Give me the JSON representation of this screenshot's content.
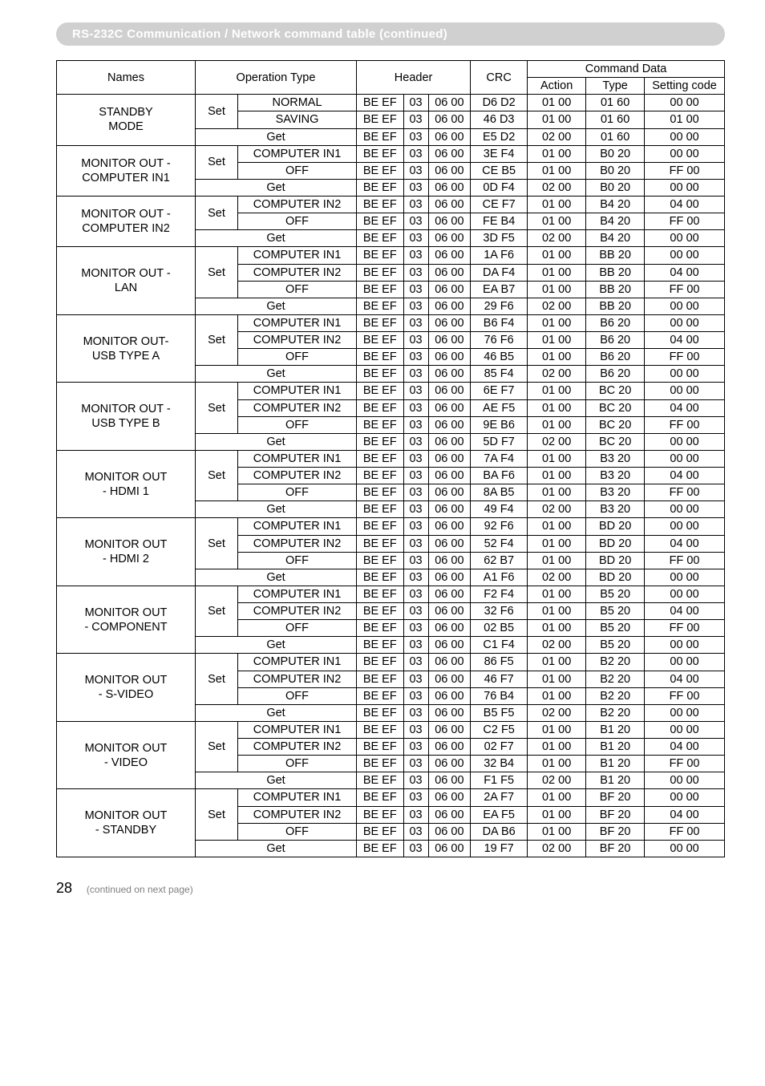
{
  "section_title": "RS-232C Communication / Network command table (continued)",
  "header": {
    "names": "Names",
    "operation_type": "Operation Type",
    "header": "Header",
    "crc": "CRC",
    "command_data": "Command Data",
    "action": "Action",
    "type": "Type",
    "setting_code": "Setting code"
  },
  "groups": [
    {
      "name": "STANDBY\nMODE",
      "set_rows": [
        {
          "op": "NORMAL",
          "h1": "BE  EF",
          "h2": "03",
          "h3": "06  00",
          "crc": "D6  D2",
          "action": "01  00",
          "type": "01  60",
          "sc": "00  00"
        },
        {
          "op": "SAVING",
          "h1": "BE  EF",
          "h2": "03",
          "h3": "06  00",
          "crc": "46  D3",
          "action": "01  00",
          "type": "01  60",
          "sc": "01  00"
        }
      ],
      "get_row": {
        "op": "Get",
        "h1": "BE  EF",
        "h2": "03",
        "h3": "06  00",
        "crc": "E5  D2",
        "action": "02  00",
        "type": "01  60",
        "sc": "00  00"
      }
    },
    {
      "name": "MONITOR OUT -\nCOMPUTER IN1",
      "set_rows": [
        {
          "op": "COMPUTER IN1",
          "h1": "BE  EF",
          "h2": "03",
          "h3": "06  00",
          "crc": "3E  F4",
          "action": "01  00",
          "type": "B0  20",
          "sc": "00  00"
        },
        {
          "op": "OFF",
          "h1": "BE  EF",
          "h2": "03",
          "h3": "06  00",
          "crc": "CE  B5",
          "action": "01  00",
          "type": "B0  20",
          "sc": "FF  00"
        }
      ],
      "get_row": {
        "op": "Get",
        "h1": "BE  EF",
        "h2": "03",
        "h3": "06  00",
        "crc": "0D  F4",
        "action": "02  00",
        "type": "B0  20",
        "sc": "00  00"
      }
    },
    {
      "name": "MONITOR OUT -\nCOMPUTER IN2",
      "set_rows": [
        {
          "op": "COMPUTER IN2",
          "h1": "BE  EF",
          "h2": "03",
          "h3": "06  00",
          "crc": "CE  F7",
          "action": "01  00",
          "type": "B4  20",
          "sc": "04  00"
        },
        {
          "op": "OFF",
          "h1": "BE  EF",
          "h2": "03",
          "h3": "06  00",
          "crc": "FE  B4",
          "action": "01  00",
          "type": "B4  20",
          "sc": "FF  00"
        }
      ],
      "get_row": {
        "op": "Get",
        "h1": "BE  EF",
        "h2": "03",
        "h3": "06  00",
        "crc": "3D  F5",
        "action": "02  00",
        "type": "B4  20",
        "sc": "00  00"
      }
    },
    {
      "name": "MONITOR OUT -\nLAN",
      "set_rows": [
        {
          "op": "COMPUTER IN1",
          "h1": "BE  EF",
          "h2": "03",
          "h3": "06  00",
          "crc": "1A  F6",
          "action": "01  00",
          "type": "BB  20",
          "sc": "00  00"
        },
        {
          "op": "COMPUTER IN2",
          "h1": "BE  EF",
          "h2": "03",
          "h3": "06  00",
          "crc": "DA  F4",
          "action": "01  00",
          "type": "BB  20",
          "sc": "04  00"
        },
        {
          "op": "OFF",
          "h1": "BE  EF",
          "h2": "03",
          "h3": "06  00",
          "crc": "EA  B7",
          "action": "01  00",
          "type": "BB  20",
          "sc": "FF  00"
        }
      ],
      "get_row": {
        "op": "Get",
        "h1": "BE  EF",
        "h2": "03",
        "h3": "06  00",
        "crc": "29  F6",
        "action": "02  00",
        "type": "BB  20",
        "sc": "00  00"
      }
    },
    {
      "name": "MONITOR OUT-\nUSB TYPE A",
      "set_rows": [
        {
          "op": "COMPUTER IN1",
          "h1": "BE  EF",
          "h2": "03",
          "h3": "06  00",
          "crc": "B6  F4",
          "action": "01  00",
          "type": "B6  20",
          "sc": "00  00"
        },
        {
          "op": "COMPUTER IN2",
          "h1": "BE  EF",
          "h2": "03",
          "h3": "06  00",
          "crc": "76  F6",
          "action": "01  00",
          "type": "B6  20",
          "sc": "04  00"
        },
        {
          "op": "OFF",
          "h1": "BE  EF",
          "h2": "03",
          "h3": "06  00",
          "crc": "46  B5",
          "action": "01  00",
          "type": "B6  20",
          "sc": "FF  00"
        }
      ],
      "get_row": {
        "op": "Get",
        "h1": "BE  EF",
        "h2": "03",
        "h3": "06  00",
        "crc": "85  F4",
        "action": "02  00",
        "type": "B6  20",
        "sc": "00  00"
      }
    },
    {
      "name": "MONITOR OUT -\nUSB TYPE B",
      "set_rows": [
        {
          "op": "COMPUTER IN1",
          "h1": "BE  EF",
          "h2": "03",
          "h3": "06  00",
          "crc": "6E  F7",
          "action": "01  00",
          "type": "BC  20",
          "sc": "00  00"
        },
        {
          "op": "COMPUTER IN2",
          "h1": "BE  EF",
          "h2": "03",
          "h3": "06  00",
          "crc": "AE  F5",
          "action": "01  00",
          "type": "BC  20",
          "sc": "04  00"
        },
        {
          "op": "OFF",
          "h1": "BE  EF",
          "h2": "03",
          "h3": "06  00",
          "crc": "9E  B6",
          "action": "01  00",
          "type": "BC  20",
          "sc": "FF  00"
        }
      ],
      "get_row": {
        "op": "Get",
        "h1": "BE  EF",
        "h2": "03",
        "h3": "06  00",
        "crc": "5D  F7",
        "action": "02  00",
        "type": "BC  20",
        "sc": "00  00"
      }
    },
    {
      "name": "MONITOR OUT\n- HDMI 1",
      "set_rows": [
        {
          "op": "COMPUTER IN1",
          "h1": "BE  EF",
          "h2": "03",
          "h3": "06  00",
          "crc": "7A  F4",
          "action": "01  00",
          "type": "B3  20",
          "sc": "00  00"
        },
        {
          "op": "COMPUTER IN2",
          "h1": "BE  EF",
          "h2": "03",
          "h3": "06  00",
          "crc": "BA  F6",
          "action": "01  00",
          "type": "B3  20",
          "sc": "04  00"
        },
        {
          "op": "OFF",
          "h1": "BE  EF",
          "h2": "03",
          "h3": "06  00",
          "crc": "8A  B5",
          "action": "01  00",
          "type": "B3  20",
          "sc": "FF  00"
        }
      ],
      "get_row": {
        "op": "Get",
        "h1": "BE  EF",
        "h2": "03",
        "h3": "06  00",
        "crc": "49  F4",
        "action": "02  00",
        "type": "B3  20",
        "sc": "00  00"
      }
    },
    {
      "name": "MONITOR OUT\n- HDMI 2",
      "set_rows": [
        {
          "op": "COMPUTER IN1",
          "h1": "BE  EF",
          "h2": "03",
          "h3": "06  00",
          "crc": "92  F6",
          "action": "01  00",
          "type": "BD  20",
          "sc": "00  00"
        },
        {
          "op": "COMPUTER IN2",
          "h1": "BE  EF",
          "h2": "03",
          "h3": "06  00",
          "crc": "52  F4",
          "action": "01  00",
          "type": "BD  20",
          "sc": "04  00"
        },
        {
          "op": "OFF",
          "h1": "BE  EF",
          "h2": "03",
          "h3": "06  00",
          "crc": "62  B7",
          "action": "01  00",
          "type": "BD  20",
          "sc": "FF  00"
        }
      ],
      "get_row": {
        "op": "Get",
        "h1": "BE  EF",
        "h2": "03",
        "h3": "06  00",
        "crc": "A1  F6",
        "action": "02  00",
        "type": "BD  20",
        "sc": "00  00"
      }
    },
    {
      "name": "MONITOR OUT\n- COMPONENT",
      "set_rows": [
        {
          "op": "COMPUTER IN1",
          "h1": "BE  EF",
          "h2": "03",
          "h3": "06  00",
          "crc": "F2  F4",
          "action": "01  00",
          "type": "B5  20",
          "sc": "00  00"
        },
        {
          "op": "COMPUTER IN2",
          "h1": "BE  EF",
          "h2": "03",
          "h3": "06  00",
          "crc": "32  F6",
          "action": "01  00",
          "type": "B5  20",
          "sc": "04  00"
        },
        {
          "op": "OFF",
          "h1": "BE  EF",
          "h2": "03",
          "h3": "06  00",
          "crc": "02  B5",
          "action": "01  00",
          "type": "B5  20",
          "sc": "FF  00"
        }
      ],
      "get_row": {
        "op": "Get",
        "h1": "BE  EF",
        "h2": "03",
        "h3": "06  00",
        "crc": "C1  F4",
        "action": "02  00",
        "type": "B5  20",
        "sc": "00  00"
      }
    },
    {
      "name": "MONITOR OUT\n- S-VIDEO",
      "set_rows": [
        {
          "op": "COMPUTER IN1",
          "h1": "BE  EF",
          "h2": "03",
          "h3": "06  00",
          "crc": "86  F5",
          "action": "01  00",
          "type": "B2  20",
          "sc": "00  00"
        },
        {
          "op": "COMPUTER IN2",
          "h1": "BE  EF",
          "h2": "03",
          "h3": "06  00",
          "crc": "46  F7",
          "action": "01  00",
          "type": "B2  20",
          "sc": "04  00"
        },
        {
          "op": "OFF",
          "h1": "BE  EF",
          "h2": "03",
          "h3": "06  00",
          "crc": "76  B4",
          "action": "01  00",
          "type": "B2  20",
          "sc": "FF  00"
        }
      ],
      "get_row": {
        "op": "Get",
        "h1": "BE  EF",
        "h2": "03",
        "h3": "06  00",
        "crc": "B5  F5",
        "action": "02  00",
        "type": "B2  20",
        "sc": "00  00"
      }
    },
    {
      "name": "MONITOR OUT\n- VIDEO",
      "set_rows": [
        {
          "op": "COMPUTER IN1",
          "h1": "BE  EF",
          "h2": "03",
          "h3": "06  00",
          "crc": "C2  F5",
          "action": "01  00",
          "type": "B1  20",
          "sc": "00  00"
        },
        {
          "op": "COMPUTER IN2",
          "h1": "BE  EF",
          "h2": "03",
          "h3": "06  00",
          "crc": "02  F7",
          "action": "01  00",
          "type": "B1  20",
          "sc": "04  00"
        },
        {
          "op": "OFF",
          "h1": "BE  EF",
          "h2": "03",
          "h3": "06  00",
          "crc": "32  B4",
          "action": "01  00",
          "type": "B1  20",
          "sc": "FF  00"
        }
      ],
      "get_row": {
        "op": "Get",
        "h1": "BE  EF",
        "h2": "03",
        "h3": "06  00",
        "crc": "F1  F5",
        "action": "02  00",
        "type": "B1  20",
        "sc": "00  00"
      }
    },
    {
      "name": "MONITOR OUT\n- STANDBY",
      "set_rows": [
        {
          "op": "COMPUTER IN1",
          "h1": "BE  EF",
          "h2": "03",
          "h3": "06  00",
          "crc": "2A  F7",
          "action": "01  00",
          "type": "BF  20",
          "sc": "00  00"
        },
        {
          "op": "COMPUTER IN2",
          "h1": "BE  EF",
          "h2": "03",
          "h3": "06  00",
          "crc": "EA  F5",
          "action": "01  00",
          "type": "BF  20",
          "sc": "04  00"
        },
        {
          "op": "OFF",
          "h1": "BE  EF",
          "h2": "03",
          "h3": "06  00",
          "crc": "DA  B6",
          "action": "01  00",
          "type": "BF  20",
          "sc": "FF  00"
        }
      ],
      "get_row": {
        "op": "Get",
        "h1": "BE  EF",
        "h2": "03",
        "h3": "06  00",
        "crc": "19  F7",
        "action": "02  00",
        "type": "BF  20",
        "sc": "00  00"
      }
    }
  ],
  "set_label": "Set",
  "footer": {
    "page": "28",
    "note": "(continued on next page)"
  }
}
